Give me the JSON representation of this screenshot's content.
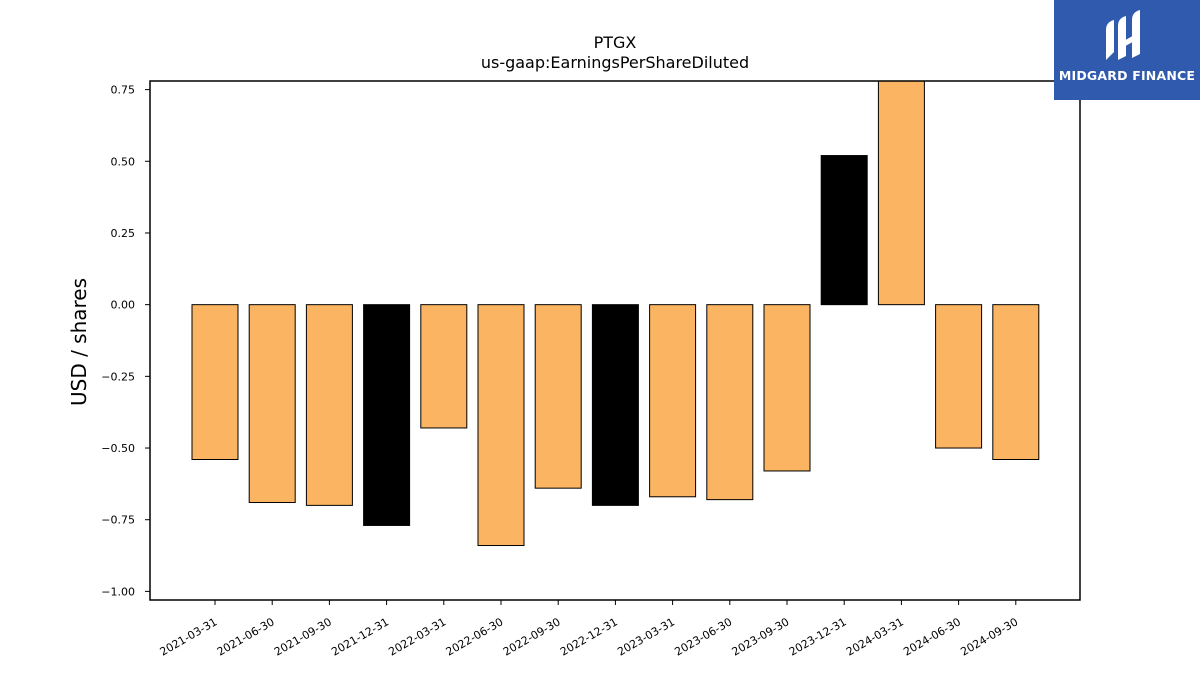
{
  "chart_data": {
    "type": "bar",
    "title": "PTGX",
    "subtitle": "us-gaap:EarningsPerShareDiluted",
    "xlabel": "",
    "ylabel": "USD / shares",
    "ylim": [
      -1.03,
      0.78
    ],
    "yticks": [
      "0.75",
      "0.50",
      "0.25",
      "0.00",
      "−0.25",
      "−0.50",
      "−0.75",
      "−1.00"
    ],
    "ytick_values": [
      0.75,
      0.5,
      0.25,
      0.0,
      -0.25,
      -0.5,
      -0.75,
      -1.0
    ],
    "categories": [
      "2021-03-31",
      "2021-06-30",
      "2021-09-30",
      "2021-12-31",
      "2022-03-31",
      "2022-06-30",
      "2022-09-30",
      "2022-12-31",
      "2023-03-31",
      "2023-06-30",
      "2023-09-30",
      "2023-12-31",
      "2024-03-31",
      "2024-06-30",
      "2024-09-30"
    ],
    "values": [
      -0.54,
      -0.69,
      -0.7,
      -0.77,
      -0.43,
      -0.84,
      -0.64,
      -0.7,
      -0.67,
      -0.68,
      -0.58,
      0.52,
      0.78,
      -0.5,
      -0.54
    ],
    "bar_colors": [
      "#fbb462",
      "#fbb462",
      "#fbb462",
      "#000000",
      "#fbb462",
      "#fbb462",
      "#fbb462",
      "#000000",
      "#fbb462",
      "#fbb462",
      "#fbb462",
      "#000000",
      "#fbb462",
      "#fbb462",
      "#fbb462"
    ],
    "grid": false,
    "legend": "none"
  },
  "logo": {
    "text": "MIDGARD FINANCE",
    "background": "#2f5aae"
  }
}
